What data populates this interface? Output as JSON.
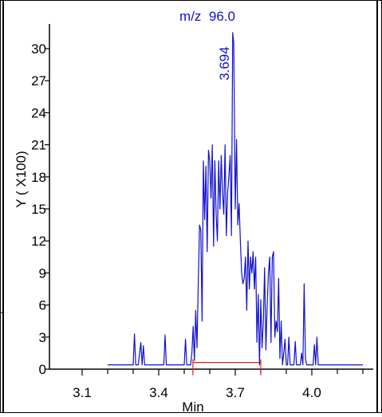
{
  "chart_data": {
    "type": "line",
    "title": "m/z  96.0",
    "xlabel": "Min",
    "ylabel": "Y ( X100)",
    "xlim": [
      3.1,
      4.25
    ],
    "ylim": [
      0,
      32
    ],
    "x_ticks": [
      3.1,
      3.4,
      3.7,
      4.0
    ],
    "x_tick_labels": [
      "3.1",
      "3.4",
      "3.7",
      "4.0"
    ],
    "y_ticks": [
      0,
      3,
      6,
      9,
      12,
      15,
      18,
      21,
      24,
      27,
      30
    ],
    "y_tick_labels": [
      "0",
      "3",
      "6",
      "9",
      "12",
      "15",
      "18",
      "21",
      "24",
      "27",
      "30"
    ],
    "peak_label": "3.694",
    "peak_x": 3.694,
    "peak_y": 31.5,
    "baseline_x": [
      3.534,
      3.8
    ],
    "baseline_y": 0.4,
    "line_color": "#1010d0",
    "baseline_color": "#e02020",
    "axis_color": "#000000",
    "grid": false,
    "x": [
      3.2,
      3.3,
      3.305,
      3.31,
      3.32,
      3.33,
      3.335,
      3.34,
      3.345,
      3.35,
      3.36,
      3.42,
      3.425,
      3.43,
      3.435,
      3.5,
      3.505,
      3.51,
      3.515,
      3.525,
      3.53,
      3.535,
      3.54,
      3.545,
      3.55,
      3.555,
      3.56,
      3.565,
      3.57,
      3.575,
      3.58,
      3.585,
      3.59,
      3.595,
      3.6,
      3.605,
      3.61,
      3.615,
      3.62,
      3.625,
      3.63,
      3.635,
      3.64,
      3.645,
      3.65,
      3.655,
      3.66,
      3.665,
      3.67,
      3.675,
      3.68,
      3.685,
      3.69,
      3.694,
      3.7,
      3.705,
      3.71,
      3.715,
      3.72,
      3.725,
      3.73,
      3.735,
      3.74,
      3.745,
      3.75,
      3.755,
      3.76,
      3.765,
      3.77,
      3.775,
      3.78,
      3.785,
      3.79,
      3.795,
      3.8,
      3.805,
      3.81,
      3.815,
      3.82,
      3.825,
      3.83,
      3.835,
      3.84,
      3.845,
      3.85,
      3.855,
      3.86,
      3.865,
      3.87,
      3.875,
      3.88,
      3.885,
      3.89,
      3.895,
      3.9,
      3.905,
      3.91,
      3.915,
      3.92,
      3.925,
      3.93,
      3.935,
      3.94,
      3.945,
      3.95,
      3.955,
      3.96,
      3.965,
      3.97,
      3.975,
      3.98,
      4.0,
      4.005,
      4.01,
      4.015,
      4.02,
      4.025,
      4.03,
      4.04,
      4.2
    ],
    "y": [
      0.4,
      0.4,
      3.3,
      0.4,
      0.4,
      2.5,
      0.4,
      2.2,
      0.4,
      0.4,
      0.4,
      0.4,
      3.2,
      0.4,
      0.4,
      0.4,
      2.8,
      0.4,
      0.4,
      0.4,
      1.5,
      4.0,
      0.8,
      5.5,
      2.0,
      8.0,
      13.5,
      13.0,
      4.5,
      19.5,
      14.0,
      19.0,
      11.0,
      20.5,
      19.5,
      16.0,
      21.0,
      11.5,
      19.5,
      14.5,
      12.0,
      19.5,
      15.0,
      20.0,
      16.5,
      14.5,
      21.0,
      12.5,
      16.5,
      18.0,
      20.0,
      12.5,
      31.5,
      30.5,
      15.0,
      21.5,
      13.5,
      15.5,
      12.0,
      9.0,
      8.0,
      8.5,
      10.5,
      5.5,
      12.0,
      7.5,
      10.5,
      9.0,
      11.0,
      7.5,
      10.5,
      2.5,
      7.0,
      0.4,
      6.5,
      2.0,
      4.5,
      9.5,
      1.8,
      6.0,
      9.0,
      10.5,
      2.5,
      10.5,
      11.0,
      3.0,
      4.5,
      3.5,
      8.5,
      1.0,
      4.5,
      0.4,
      1.5,
      2.8,
      0.4,
      0.4,
      3.0,
      0.4,
      0.4,
      0.4,
      0.4,
      2.6,
      0.4,
      0.4,
      0.4,
      0.4,
      1.5,
      0.4,
      8.0,
      1.0,
      0.4,
      0.4,
      0.4,
      2.3,
      0.4,
      3.0,
      0.4,
      0.4,
      0.4,
      0.4
    ]
  }
}
